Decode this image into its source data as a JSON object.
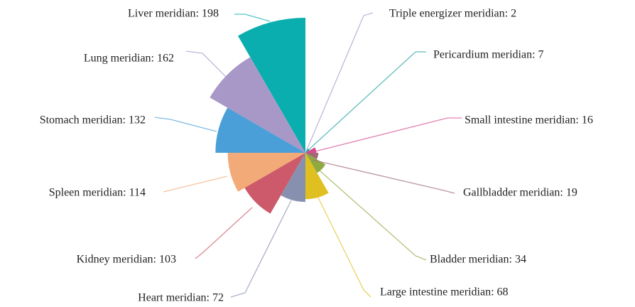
{
  "chart_data": {
    "type": "rose",
    "values": [
      198,
      162,
      132,
      114,
      103,
      72,
      68,
      34,
      19,
      16,
      7,
      2
    ],
    "value_labels": [
      "Liver meridian: 198",
      "Lung meridian: 162",
      "Stomach meridian: 132",
      "Spleen meridian: 114",
      "Kidney meridian: 103",
      "Heart meridian: 72",
      "Large intestine meridian: 68",
      "Bladder meridian: 34",
      "Gallbladder meridian: 19",
      "Small intestine meridian: 16",
      "Pericardium meridian: 7",
      "Triple energizer meridian: 2"
    ],
    "colors": [
      "#0aaeae",
      "#a898c8",
      "#4a9fd8",
      "#f2aa78",
      "#cc5a6a",
      "#8890b0",
      "#e0c020",
      "#8faa40",
      "#a06878",
      "#d84a8e",
      "#20a0a0",
      "#a898c8"
    ]
  }
}
